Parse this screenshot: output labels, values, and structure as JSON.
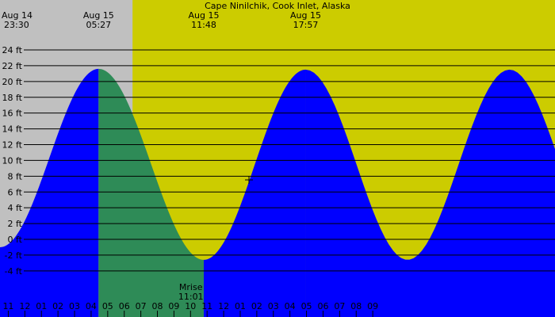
{
  "chart_data": {
    "type": "area",
    "title": "Cape Ninilchik, Cook Inlet, Alaska",
    "y_unit": "ft",
    "y_ticks": [
      24,
      22,
      20,
      18,
      16,
      14,
      12,
      10,
      8,
      6,
      4,
      2,
      0,
      -2,
      -4
    ],
    "ylim": [
      -5,
      25
    ],
    "x_hour_labels": [
      "11",
      "12",
      "01",
      "02",
      "03",
      "04",
      "05",
      "06",
      "07",
      "08",
      "09",
      "10",
      "11",
      "12",
      "01",
      "02",
      "03",
      "04",
      "05",
      "06",
      "07",
      "08",
      "09"
    ],
    "xlim_hours": [
      -0.5,
      33
    ],
    "daylight_hours": [
      7.5,
      33
    ],
    "extremes": [
      {
        "date": "Aug 14",
        "time": "23:30",
        "hour": 23.5,
        "height": -1.0
      },
      {
        "date": "Aug 15",
        "time": "05:27",
        "hour": 29.45,
        "height": 21.6
      },
      {
        "date": "Aug 15",
        "time": "11:48",
        "hour": 35.8,
        "height": -2.6
      },
      {
        "date": "Aug 15",
        "time": "17:57",
        "hour": 41.95,
        "height": 21.5
      }
    ],
    "moon_event": {
      "label": "Mrise",
      "time": "11:01",
      "hour": 35.02
    },
    "colors": {
      "night": "#c0c0c0",
      "day": "#cccc00",
      "rising": "#0000ff",
      "falling": "#2e8b57"
    }
  }
}
